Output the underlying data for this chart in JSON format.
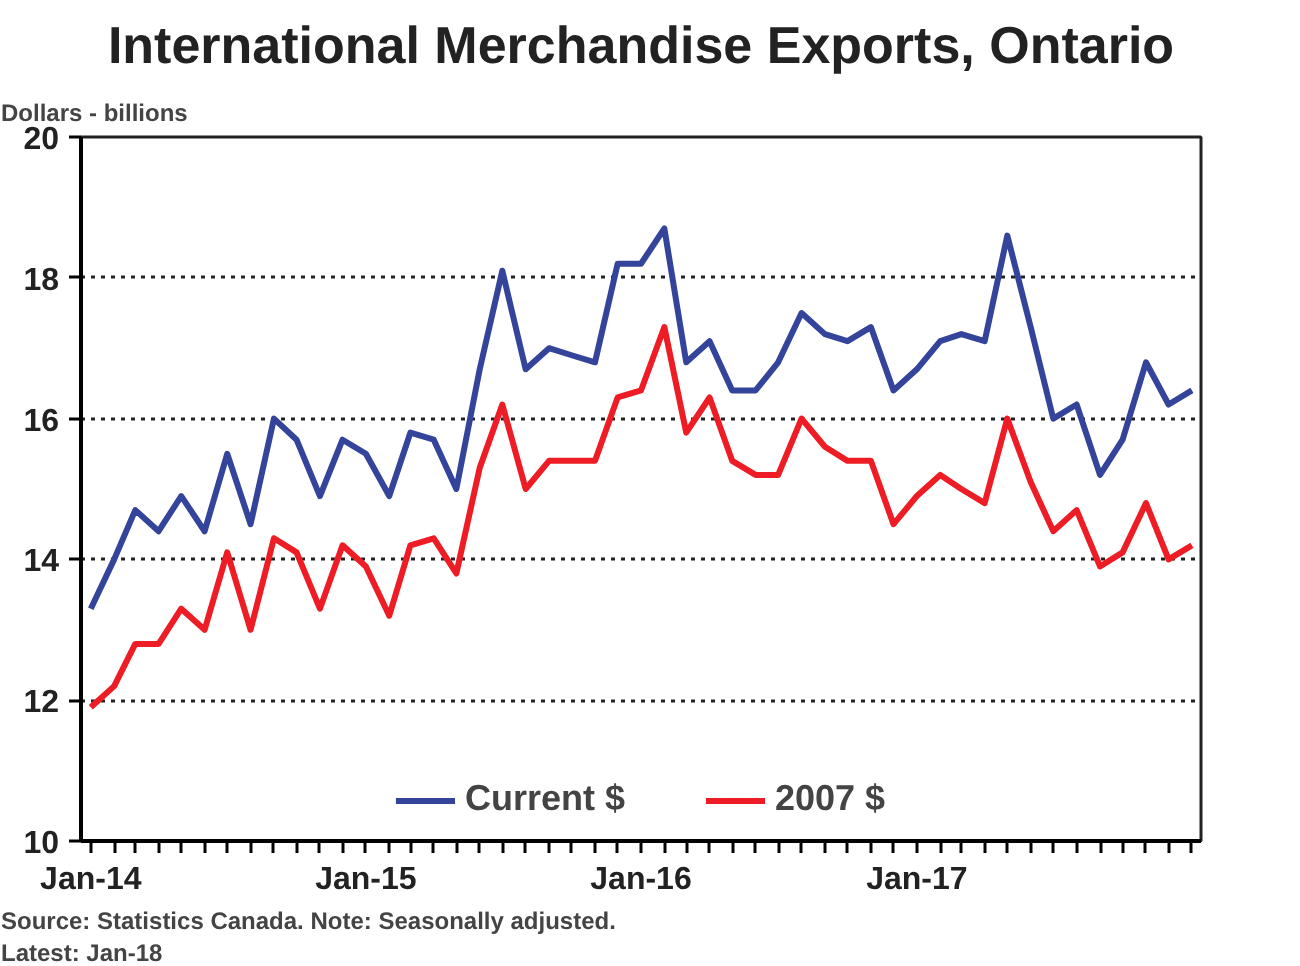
{
  "chart_data": {
    "type": "line",
    "title": "International Merchandise Exports, Ontario",
    "ylabel": "Dollars - billions",
    "x": [
      "2014-01",
      "2014-02",
      "2014-03",
      "2014-04",
      "2014-05",
      "2014-06",
      "2014-07",
      "2014-08",
      "2014-09",
      "2014-10",
      "2014-11",
      "2014-12",
      "2015-01",
      "2015-02",
      "2015-03",
      "2015-04",
      "2015-05",
      "2015-06",
      "2015-07",
      "2015-08",
      "2015-09",
      "2015-10",
      "2015-11",
      "2015-12",
      "2016-01",
      "2016-02",
      "2016-03",
      "2016-04",
      "2016-05",
      "2016-06",
      "2016-07",
      "2016-08",
      "2016-09",
      "2016-10",
      "2016-11",
      "2016-12",
      "2017-01",
      "2017-02",
      "2017-03",
      "2017-04",
      "2017-05",
      "2017-06",
      "2017-07",
      "2017-08",
      "2017-09",
      "2017-10",
      "2017-11",
      "2017-12",
      "2018-01"
    ],
    "series": [
      {
        "name": "Current $",
        "color": "#33449a",
        "values": [
          13.3,
          14.0,
          14.7,
          14.4,
          14.9,
          14.4,
          15.5,
          14.5,
          16.0,
          15.7,
          14.9,
          15.7,
          15.5,
          14.9,
          15.8,
          15.7,
          15.0,
          16.7,
          18.1,
          16.7,
          17.0,
          16.9,
          16.8,
          18.2,
          18.2,
          18.7,
          16.8,
          17.1,
          16.4,
          16.4,
          16.8,
          17.5,
          17.2,
          17.1,
          17.3,
          16.4,
          16.7,
          17.1,
          17.2,
          17.1,
          18.6,
          17.3,
          16.0,
          16.2,
          15.2,
          15.7,
          16.8,
          16.2,
          16.4
        ]
      },
      {
        "name": "2007 $",
        "color": "#ee1c25",
        "values": [
          11.9,
          12.2,
          12.8,
          12.8,
          13.3,
          13.0,
          14.1,
          13.0,
          14.3,
          14.1,
          13.3,
          14.2,
          13.9,
          13.2,
          14.2,
          14.3,
          13.8,
          15.3,
          16.2,
          15.0,
          15.4,
          15.4,
          15.4,
          16.3,
          16.4,
          17.3,
          15.8,
          16.3,
          15.4,
          15.2,
          15.2,
          16.0,
          15.6,
          15.4,
          15.4,
          14.5,
          14.9,
          15.2,
          15.0,
          14.8,
          16.0,
          15.1,
          14.4,
          14.7,
          13.9,
          14.1,
          14.8,
          14.0,
          14.2
        ]
      }
    ],
    "xlim": [
      "2013-12-19",
      "2018-01-13"
    ],
    "xticks": [
      {
        "value": "2014-01",
        "label": "Jan-14"
      },
      {
        "value": "2014-02",
        "label": null
      },
      {
        "value": "2014-03",
        "label": null
      },
      {
        "value": "2014-04",
        "label": null
      },
      {
        "value": "2014-05",
        "label": null
      },
      {
        "value": "2014-06",
        "label": null
      },
      {
        "value": "2014-07",
        "label": null
      },
      {
        "value": "2014-08",
        "label": null
      },
      {
        "value": "2014-09",
        "label": null
      },
      {
        "value": "2014-10",
        "label": null
      },
      {
        "value": "2014-11",
        "label": null
      },
      {
        "value": "2014-12",
        "label": null
      },
      {
        "value": "2015-01",
        "label": "Jan-15"
      },
      {
        "value": "2015-02",
        "label": null
      },
      {
        "value": "2015-03",
        "label": null
      },
      {
        "value": "2015-04",
        "label": null
      },
      {
        "value": "2015-05",
        "label": null
      },
      {
        "value": "2015-06",
        "label": null
      },
      {
        "value": "2015-07",
        "label": null
      },
      {
        "value": "2015-08",
        "label": null
      },
      {
        "value": "2015-09",
        "label": null
      },
      {
        "value": "2015-10",
        "label": null
      },
      {
        "value": "2015-11",
        "label": null
      },
      {
        "value": "2015-12",
        "label": null
      },
      {
        "value": "2016-01",
        "label": "Jan-16"
      },
      {
        "value": "2016-02",
        "label": null
      },
      {
        "value": "2016-03",
        "label": null
      },
      {
        "value": "2016-04",
        "label": null
      },
      {
        "value": "2016-05",
        "label": null
      },
      {
        "value": "2016-06",
        "label": null
      },
      {
        "value": "2016-07",
        "label": null
      },
      {
        "value": "2016-08",
        "label": null
      },
      {
        "value": "2016-09",
        "label": null
      },
      {
        "value": "2016-10",
        "label": null
      },
      {
        "value": "2016-11",
        "label": null
      },
      {
        "value": "2016-12",
        "label": null
      },
      {
        "value": "2017-01",
        "label": "Jan-17"
      },
      {
        "value": "2017-02",
        "label": null
      },
      {
        "value": "2017-03",
        "label": null
      },
      {
        "value": "2017-04",
        "label": null
      },
      {
        "value": "2017-05",
        "label": null
      },
      {
        "value": "2017-06",
        "label": null
      },
      {
        "value": "2017-07",
        "label": null
      },
      {
        "value": "2017-08",
        "label": null
      },
      {
        "value": "2017-09",
        "label": null
      },
      {
        "value": "2017-10",
        "label": null
      },
      {
        "value": "2017-11",
        "label": null
      },
      {
        "value": "2017-12",
        "label": null
      },
      {
        "value": "2018-01",
        "label": null
      }
    ],
    "ylim": [
      10,
      20
    ],
    "yticks": [
      10,
      12,
      14,
      16,
      18,
      20
    ],
    "grid": "y",
    "legend": "bottom",
    "line_style": "solid",
    "annotations": [
      "Source: Statistics Canada. Note: Seasonally adjusted.",
      "Latest: Jan-18"
    ]
  }
}
